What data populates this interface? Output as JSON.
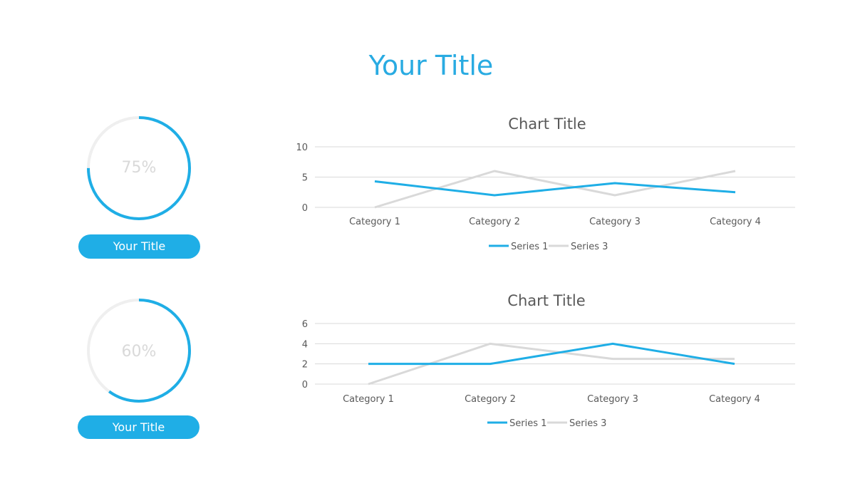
{
  "page": {
    "title": "Your Title"
  },
  "gauges": [
    {
      "percent_label": "75%",
      "value": 75,
      "button_label": "Your Title"
    },
    {
      "percent_label": "60%",
      "value": 60,
      "button_label": "Your Title"
    }
  ],
  "colors": {
    "accent": "#1FAEE6",
    "track": "#EFEFEF",
    "series1": "#1FAEE6",
    "series3": "#D9D9D9",
    "grid": "#D9D9D9"
  },
  "chart_data": [
    {
      "type": "line",
      "title": "Chart Title",
      "categories": [
        "Category 1",
        "Category 2",
        "Category 3",
        "Category 4"
      ],
      "series": [
        {
          "name": "Series 1",
          "values": [
            4.3,
            2,
            4,
            2.5
          ]
        },
        {
          "name": "Series 3",
          "values": [
            0,
            6,
            2,
            6
          ]
        }
      ],
      "ylim": [
        0,
        10
      ],
      "yticks": [
        "0",
        "5",
        "10"
      ],
      "legend": "bottom",
      "grid": true
    },
    {
      "type": "line",
      "title": "Chart Title",
      "categories": [
        "Category 1",
        "Category 2",
        "Category 3",
        "Category 4"
      ],
      "series": [
        {
          "name": "Series 1",
          "values": [
            2,
            2,
            4,
            2
          ]
        },
        {
          "name": "Series 3",
          "values": [
            0,
            4,
            2.5,
            2.5
          ]
        }
      ],
      "ylim": [
        0,
        6
      ],
      "yticks": [
        "0",
        "2",
        "4",
        "6"
      ],
      "legend": "bottom",
      "grid": true
    }
  ]
}
